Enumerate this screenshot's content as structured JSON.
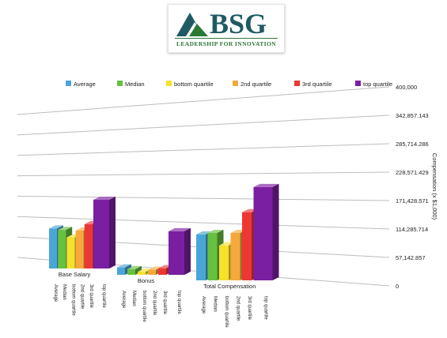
{
  "logo": {
    "name": "BSG",
    "tagline": "LEADERSHIP FOR INNOVATION",
    "colors": {
      "name": "#1f5a63",
      "tagline": "#2a7a35"
    }
  },
  "chart_data": {
    "type": "bar",
    "title": "",
    "xlabel": "",
    "ylabel": "Compensation (x $1,000)",
    "ylim": [
      0,
      400000
    ],
    "yticks": [
      "0",
      "57,142.857",
      "114,285.714",
      "171,428.571",
      "228,571.429",
      "285,714.286",
      "342,857.143",
      "400,000"
    ],
    "grid": true,
    "legend_position": "top",
    "categories": [
      "Base Salary",
      "Bonus",
      "Total Compensation"
    ],
    "series_tick_labels": [
      "Average",
      "Median",
      "bottom quartile",
      "2nd quartile",
      "3rd quartile",
      "top quartile"
    ],
    "series": [
      {
        "name": "Average",
        "color": "#4aa6d6",
        "values": [
          135000,
          25000,
          155000
        ]
      },
      {
        "name": "Median",
        "color": "#66c13e",
        "values": [
          130000,
          19000,
          160000
        ]
      },
      {
        "name": "bottom quartile",
        "color": "#f6e12b",
        "values": [
          105000,
          10000,
          118000
        ]
      },
      {
        "name": "2nd quartile",
        "color": "#f5a93c",
        "values": [
          128000,
          17000,
          160000
        ]
      },
      {
        "name": "3rd quartile",
        "color": "#ed3733",
        "values": [
          150000,
          22000,
          230000
        ]
      },
      {
        "name": "top quartile",
        "color": "#7b1fa2",
        "values": [
          232000,
          147000,
          315000
        ]
      }
    ]
  }
}
